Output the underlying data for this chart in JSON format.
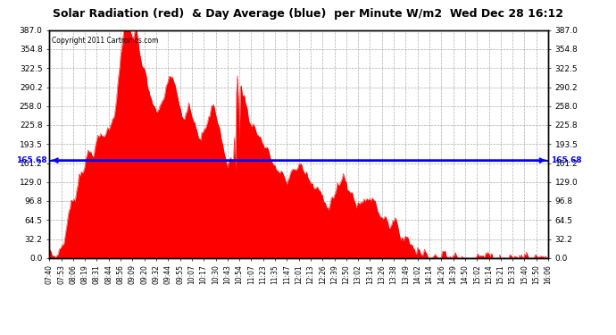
{
  "title": "Solar Radiation (red)  & Day Average (blue)  per Minute W/m2  Wed Dec 28 16:12",
  "copyright": "Copyright 2011 Cartronics.com",
  "y_min": 0.0,
  "y_max": 387.0,
  "y_ticks": [
    0.0,
    32.2,
    64.5,
    96.8,
    129.0,
    161.2,
    193.5,
    225.8,
    258.0,
    290.2,
    322.5,
    354.8,
    387.0
  ],
  "day_average": 165.68,
  "fill_color": "#FF0000",
  "line_color": "#0000FF",
  "background_color": "#FFFFFF",
  "grid_color": "#999999",
  "x_labels": [
    "07:40",
    "07:53",
    "08:06",
    "08:19",
    "08:31",
    "08:44",
    "08:56",
    "09:09",
    "09:20",
    "09:32",
    "09:44",
    "09:55",
    "10:07",
    "10:17",
    "10:30",
    "10:43",
    "10:54",
    "11:07",
    "11:23",
    "11:35",
    "11:47",
    "12:01",
    "12:13",
    "12:26",
    "12:39",
    "12:50",
    "13:02",
    "13:14",
    "13:26",
    "13:38",
    "13:49",
    "14:02",
    "14:14",
    "14:26",
    "14:39",
    "14:50",
    "15:02",
    "15:14",
    "15:21",
    "15:33",
    "15:40",
    "15:50",
    "16:06"
  ],
  "solar_keypoints": [
    [
      0,
      5
    ],
    [
      8,
      5
    ],
    [
      15,
      30
    ],
    [
      20,
      80
    ],
    [
      25,
      100
    ],
    [
      30,
      140
    ],
    [
      35,
      160
    ],
    [
      40,
      175
    ],
    [
      45,
      185
    ],
    [
      50,
      200
    ],
    [
      55,
      210
    ],
    [
      60,
      220
    ],
    [
      65,
      240
    ],
    [
      70,
      310
    ],
    [
      75,
      370
    ],
    [
      80,
      385
    ],
    [
      85,
      375
    ],
    [
      90,
      350
    ],
    [
      95,
      320
    ],
    [
      100,
      290
    ],
    [
      105,
      260
    ],
    [
      108,
      240
    ],
    [
      112,
      255
    ],
    [
      115,
      270
    ],
    [
      118,
      290
    ],
    [
      122,
      310
    ],
    [
      125,
      300
    ],
    [
      128,
      280
    ],
    [
      132,
      260
    ],
    [
      135,
      245
    ],
    [
      138,
      255
    ],
    [
      141,
      265
    ],
    [
      144,
      250
    ],
    [
      147,
      235
    ],
    [
      150,
      220
    ],
    [
      153,
      200
    ],
    [
      156,
      210
    ],
    [
      159,
      220
    ],
    [
      162,
      240
    ],
    [
      165,
      260
    ],
    [
      168,
      250
    ],
    [
      171,
      230
    ],
    [
      174,
      200
    ],
    [
      177,
      175
    ],
    [
      180,
      155
    ],
    [
      183,
      165
    ],
    [
      186,
      175
    ],
    [
      189,
      290
    ],
    [
      192,
      305
    ],
    [
      195,
      285
    ],
    [
      198,
      265
    ],
    [
      201,
      245
    ],
    [
      204,
      230
    ],
    [
      207,
      220
    ],
    [
      210,
      215
    ],
    [
      213,
      205
    ],
    [
      216,
      195
    ],
    [
      219,
      185
    ],
    [
      222,
      175
    ],
    [
      225,
      165
    ],
    [
      228,
      155
    ],
    [
      231,
      145
    ],
    [
      234,
      140
    ],
    [
      237,
      135
    ],
    [
      240,
      130
    ],
    [
      243,
      140
    ],
    [
      246,
      150
    ],
    [
      249,
      155
    ],
    [
      252,
      160
    ],
    [
      255,
      155
    ],
    [
      258,
      145
    ],
    [
      261,
      135
    ],
    [
      264,
      125
    ],
    [
      267,
      120
    ],
    [
      270,
      115
    ],
    [
      273,
      110
    ],
    [
      276,
      105
    ],
    [
      279,
      100
    ],
    [
      282,
      95
    ],
    [
      285,
      100
    ],
    [
      288,
      110
    ],
    [
      291,
      120
    ],
    [
      294,
      125
    ],
    [
      297,
      130
    ],
    [
      300,
      125
    ],
    [
      303,
      115
    ],
    [
      306,
      105
    ],
    [
      309,
      100
    ],
    [
      312,
      95
    ],
    [
      315,
      90
    ],
    [
      318,
      95
    ],
    [
      321,
      100
    ],
    [
      324,
      105
    ],
    [
      327,
      100
    ],
    [
      330,
      90
    ],
    [
      333,
      80
    ],
    [
      336,
      75
    ],
    [
      339,
      70
    ],
    [
      342,
      65
    ],
    [
      345,
      60
    ],
    [
      348,
      55
    ],
    [
      351,
      50
    ],
    [
      354,
      45
    ],
    [
      357,
      40
    ],
    [
      360,
      35
    ],
    [
      363,
      30
    ],
    [
      366,
      25
    ],
    [
      369,
      20
    ],
    [
      372,
      15
    ],
    [
      375,
      10
    ],
    [
      378,
      8
    ],
    [
      381,
      5
    ],
    [
      385,
      4
    ],
    [
      390,
      3
    ],
    [
      395,
      2
    ],
    [
      400,
      2
    ]
  ]
}
